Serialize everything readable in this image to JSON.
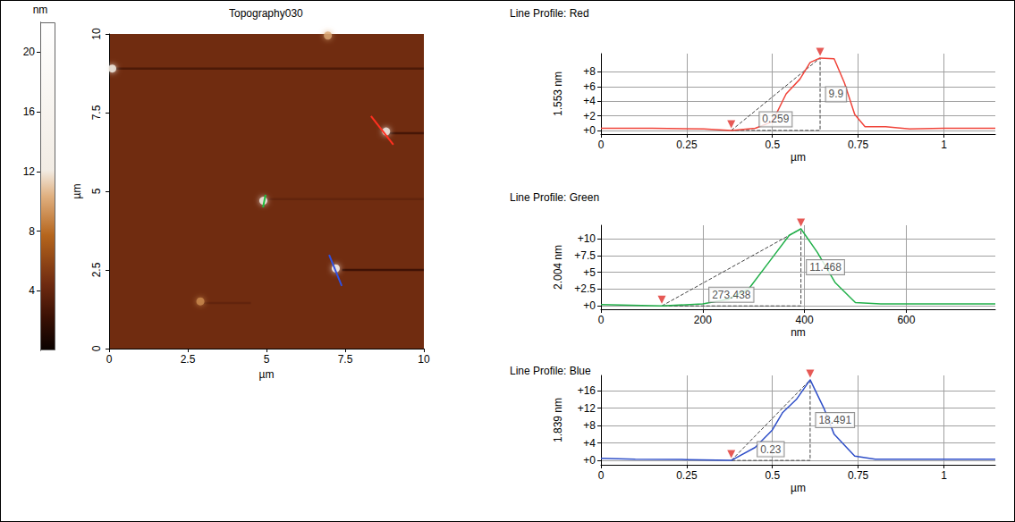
{
  "chart_data": [
    {
      "type": "heatmap",
      "title": "Topography030",
      "x_label": "µm",
      "y_label": "µm",
      "xlim": [
        0,
        10
      ],
      "ylim": [
        0,
        10
      ],
      "xticks": [
        0,
        2.5,
        5,
        7.5,
        10
      ],
      "yticks": [
        0,
        2.5,
        5,
        7.5,
        10
      ],
      "grid": false,
      "background": 4.5,
      "particles": {
        "x": [
          0.1,
          2.9,
          4.9,
          6.95,
          8.8,
          7.2
        ],
        "y": [
          8.9,
          1.5,
          4.7,
          9.95,
          6.9,
          2.55
        ],
        "values": [
          14,
          9,
          15,
          10,
          13,
          18
        ]
      },
      "streaks": [
        {
          "y": 8.9,
          "x": [
            0,
            10
          ],
          "value": 2.8
        },
        {
          "y": 6.85,
          "x": [
            8.9,
            10
          ],
          "value": 2.5
        },
        {
          "y": 2.5,
          "x": [
            7.4,
            10
          ],
          "value": 2.2
        },
        {
          "y": 1.45,
          "x": [
            2.9,
            4.5
          ],
          "value": 3.8
        },
        {
          "y": 4.75,
          "x": [
            5,
            10
          ],
          "value": 3.8
        }
      ],
      "profile_lines": [
        {
          "color": "#ff3020",
          "x": [
            8.32,
            9.03
          ],
          "y": [
            7.39,
            6.48
          ]
        },
        {
          "color": "#20c040",
          "x": [
            4.97,
            4.89
          ],
          "y": [
            4.89,
            4.49
          ]
        },
        {
          "color": "#3050e0",
          "x": [
            6.99,
            7.39
          ],
          "y": [
            2.98,
            1.99
          ]
        }
      ],
      "colorbar": {
        "label": "nm",
        "range": [
          0,
          22
        ],
        "ticks": [
          4,
          8,
          12,
          16,
          20
        ]
      }
    },
    {
      "type": "line",
      "title": "Line Profile: Red",
      "x_label": "µm",
      "y_label": "1.553 nm",
      "color": "#f0443a",
      "x": [
        0,
        0.15,
        0.3,
        0.38,
        0.45,
        0.5,
        0.54,
        0.58,
        0.61,
        0.639,
        0.68,
        0.71,
        0.74,
        0.77,
        0.83,
        0.9,
        1.0,
        1.15
      ],
      "values": [
        0.3,
        0.3,
        0.2,
        0,
        0.3,
        1.2,
        5,
        7,
        9.3,
        9.9,
        9.8,
        6.5,
        2.2,
        0.5,
        0.5,
        0.2,
        0.3,
        0.3
      ],
      "xlim": [
        0,
        1.15
      ],
      "xticks": [
        0,
        0.25,
        0.5,
        0.75,
        1
      ],
      "ylim": [
        -0.5,
        10.5
      ],
      "yticks": [
        {
          "value": 0,
          "label": "+0"
        },
        {
          "value": 2,
          "label": "+2"
        },
        {
          "value": 4,
          "label": "+4"
        },
        {
          "value": 6,
          "label": "+6"
        },
        {
          "value": 8,
          "label": "+8"
        }
      ],
      "grid": true,
      "markers": {
        "x": [
          0.38,
          0.639
        ],
        "y": [
          0,
          9.9
        ]
      },
      "height": 9.9,
      "distance": 0.259
    },
    {
      "type": "line",
      "title": "Line Profile: Green",
      "x_label": "nm",
      "y_label": "2.004 nm",
      "color": "#22b04a",
      "x": [
        0,
        60,
        119.562,
        200,
        250,
        290,
        340,
        370,
        393,
        425,
        460,
        500,
        550,
        650,
        775
      ],
      "values": [
        0.2,
        0.1,
        0,
        0.3,
        1,
        2.5,
        7.5,
        10.5,
        11.468,
        8,
        3.5,
        0.5,
        0.3,
        0.3,
        0.3
      ],
      "xlim": [
        0,
        775
      ],
      "xticks": [
        0,
        200,
        400,
        600
      ],
      "ylim": [
        -0.5,
        12
      ],
      "yticks": [
        {
          "value": 0,
          "label": "+0"
        },
        {
          "value": 2.5,
          "label": "+2.5"
        },
        {
          "value": 5,
          "label": "+5"
        },
        {
          "value": 7.5,
          "label": "+7.5"
        },
        {
          "value": 10,
          "label": "+10"
        }
      ],
      "grid": true,
      "markers": {
        "x": [
          119.562,
          393
        ],
        "y": [
          0,
          11.468
        ]
      },
      "height": 11.468,
      "distance": 273.438
    },
    {
      "type": "line",
      "title": "Line Profile: Blue",
      "x_label": "µm",
      "y_label": "1.839 nm",
      "color": "#2f4fc8",
      "x": [
        0,
        0.1,
        0.25,
        0.38,
        0.45,
        0.5,
        0.53,
        0.57,
        0.61,
        0.65,
        0.68,
        0.74,
        0.8,
        1.0,
        1.15
      ],
      "values": [
        0.5,
        0.3,
        0.2,
        0,
        3,
        7,
        11,
        14,
        18.491,
        12,
        6,
        1,
        0.3,
        0.3,
        0.3
      ],
      "xlim": [
        0,
        1.15
      ],
      "xticks": [
        0,
        0.25,
        0.5,
        0.75,
        1
      ],
      "ylim": [
        -1,
        19.5
      ],
      "yticks": [
        {
          "value": 0,
          "label": "+0"
        },
        {
          "value": 4,
          "label": "+4"
        },
        {
          "value": 8,
          "label": "+8"
        },
        {
          "value": 12,
          "label": "+12"
        },
        {
          "value": 16,
          "label": "+16"
        }
      ],
      "grid": true,
      "markers": {
        "x": [
          0.38,
          0.61
        ],
        "y": [
          0,
          18.491
        ]
      },
      "height": 18.491,
      "distance": 0.23
    }
  ]
}
